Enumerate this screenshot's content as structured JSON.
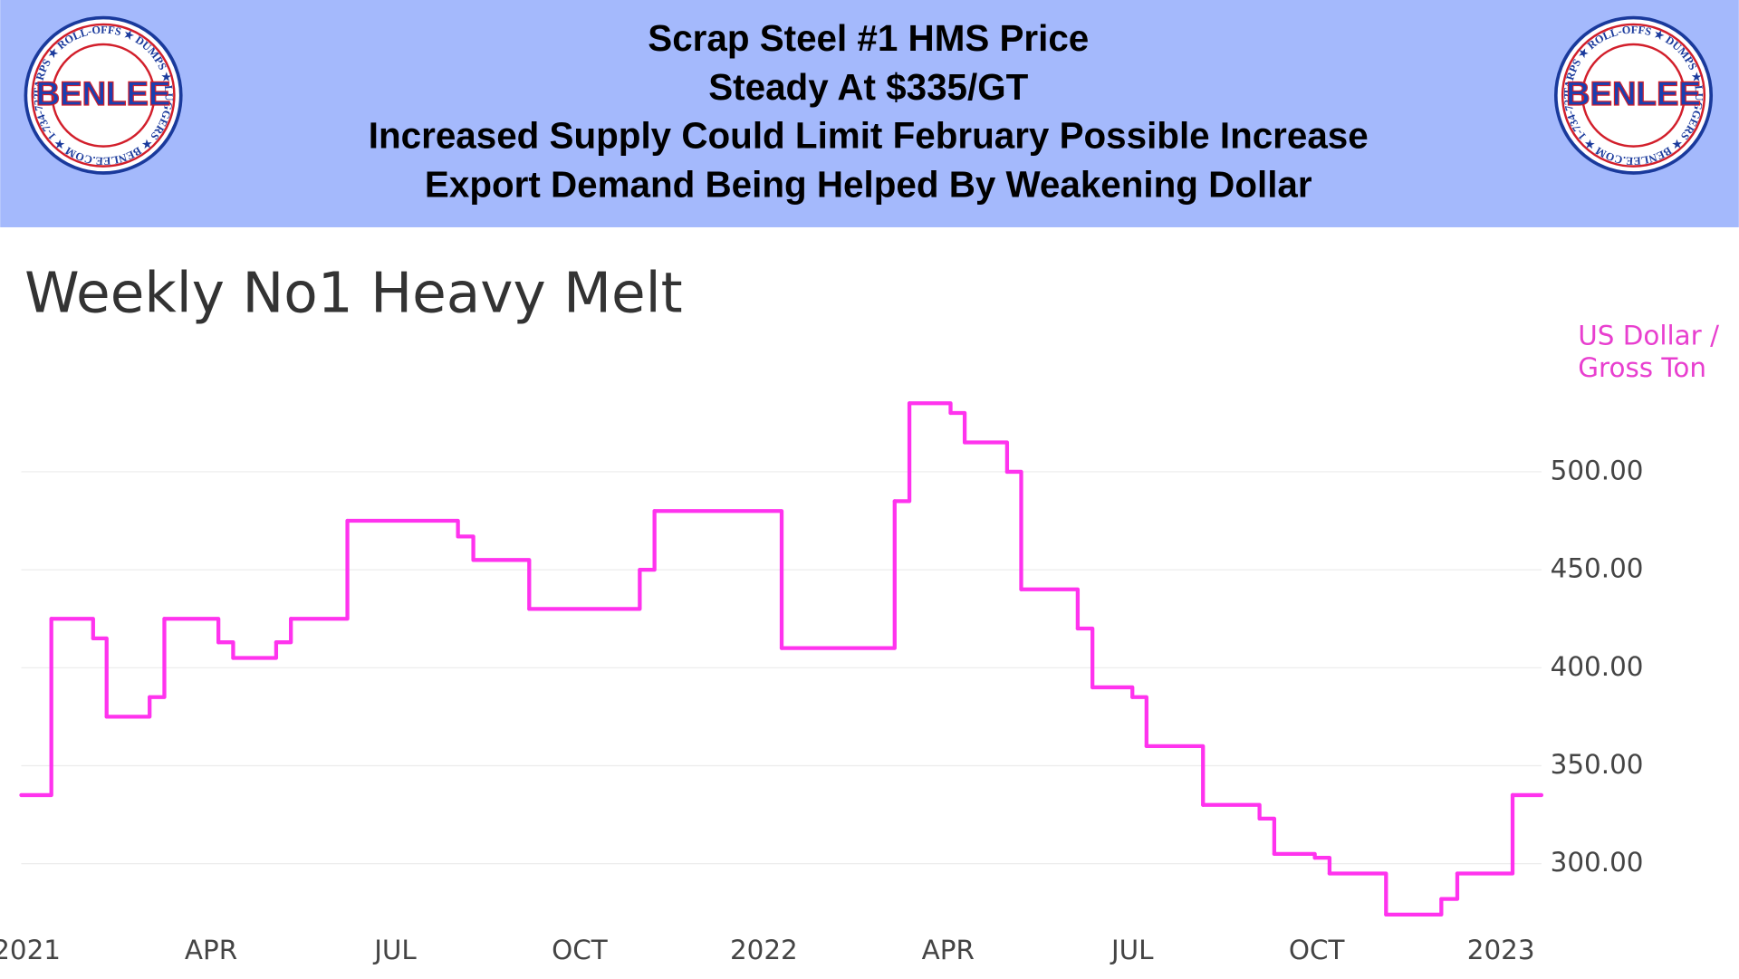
{
  "header": {
    "title_lines": [
      "Scrap Steel #1 HMS Price",
      "Steady At $335/GT",
      "Increased Supply Could Limit February Possible Increase",
      "Export Demand Being Helped By Weakening Dollar"
    ],
    "logo": {
      "name": "BENLEE",
      "ring_text": "TARPS ★ ROLL-OFFS ★ DUMPS ★ LUGGERS ★ BENLEE.COM ★ 1-734-722-8100 ★ PARTS ★"
    }
  },
  "chart_data": {
    "type": "line",
    "step": "post",
    "title": "Weekly No1 Heavy Melt",
    "y_label_lines": [
      "US Dollar /",
      "Gross Ton"
    ],
    "x": [
      0.0,
      0.49,
      1.17,
      1.39,
      2.09,
      2.33,
      3.21,
      3.45,
      4.15,
      4.39,
      5.31,
      7.11,
      7.36,
      8.27,
      10.07,
      10.31,
      12.38,
      14.22,
      14.46,
      15.13,
      15.36,
      16.05,
      16.28,
      17.2,
      17.44,
      18.09,
      18.32,
      19.24,
      20.16,
      20.4,
      21.06,
      21.3,
      22.22,
      23.12,
      23.38,
      24.28
    ],
    "series": [
      {
        "name": "Weekly No1 Heavy Melt",
        "color": "#ff33ee",
        "values": [
          335,
          425,
          415,
          375,
          385,
          425,
          413,
          405,
          413,
          425,
          475,
          467,
          455,
          430,
          450,
          480,
          410,
          485,
          535,
          530,
          515,
          500,
          440,
          420,
          390,
          385,
          360,
          330,
          323,
          305,
          303,
          295,
          274,
          282,
          295,
          335
        ]
      }
    ],
    "xlim": [
      0,
      24.75
    ],
    "ylim": [
      270,
      545
    ],
    "xticks": [
      {
        "value": 0,
        "label": "2021"
      },
      {
        "value": 3,
        "label": "APR"
      },
      {
        "value": 6,
        "label": "JUL"
      },
      {
        "value": 9,
        "label": "OCT"
      },
      {
        "value": 12,
        "label": "2022"
      },
      {
        "value": 15,
        "label": "APR"
      },
      {
        "value": 18,
        "label": "JUL"
      },
      {
        "value": 21,
        "label": "OCT"
      },
      {
        "value": 24,
        "label": "2023"
      }
    ],
    "yticks": [
      {
        "value": 300,
        "label": "300.00"
      },
      {
        "value": 350,
        "label": "350.00"
      },
      {
        "value": 400,
        "label": "400.00"
      },
      {
        "value": 450,
        "label": "450.00"
      },
      {
        "value": 500,
        "label": "500.00"
      }
    ],
    "grid": true
  }
}
